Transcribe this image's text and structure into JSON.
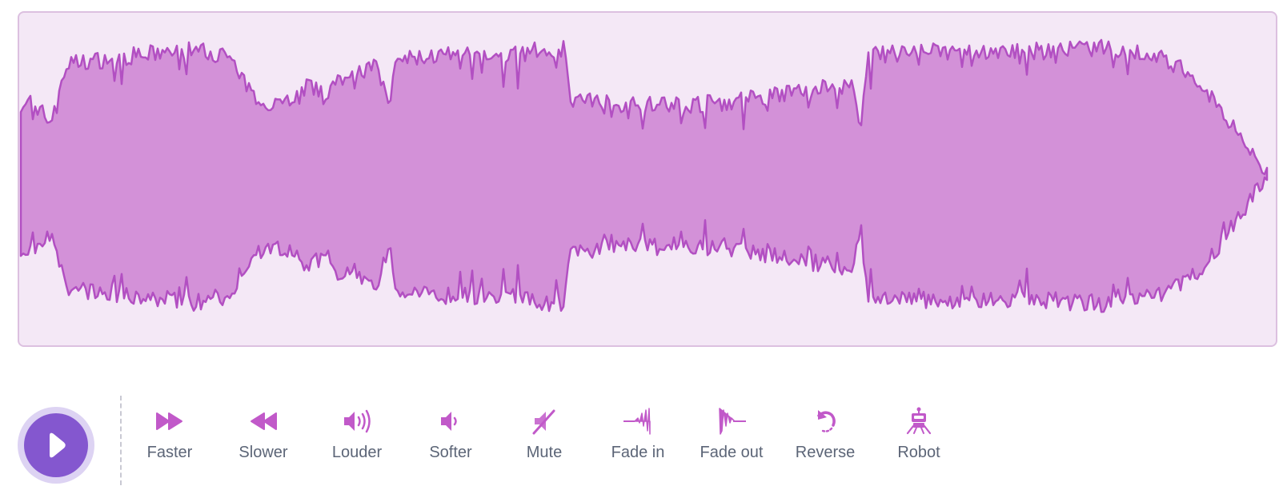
{
  "colors": {
    "accent": "#8457cf",
    "accent_light": "#ddd3f3",
    "wave_fill": "#d391d8",
    "wave_stroke": "#b24fc2",
    "panel_bg": "#f4e8f6",
    "panel_border": "#dcc0e0",
    "icon": "#c159c9",
    "label": "#5c6577"
  },
  "player": {
    "play_icon": "play-icon"
  },
  "effects": [
    {
      "label": "Faster",
      "icon": "fast-forward-icon"
    },
    {
      "label": "Slower",
      "icon": "rewind-icon"
    },
    {
      "label": "Louder",
      "icon": "volume-up-icon"
    },
    {
      "label": "Softer",
      "icon": "volume-down-icon"
    },
    {
      "label": "Mute",
      "icon": "mute-icon"
    },
    {
      "label": "Fade in",
      "icon": "fade-in-icon"
    },
    {
      "label": "Fade out",
      "icon": "fade-out-icon"
    },
    {
      "label": "Reverse",
      "icon": "reverse-icon"
    },
    {
      "label": "Robot",
      "icon": "robot-icon"
    }
  ]
}
